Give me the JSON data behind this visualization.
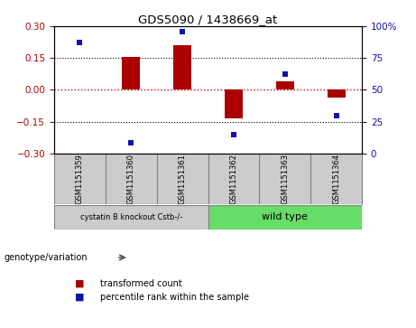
{
  "title": "GDS5090 / 1438669_at",
  "samples": [
    "GSM1151359",
    "GSM1151360",
    "GSM1151361",
    "GSM1151362",
    "GSM1151363",
    "GSM1151364"
  ],
  "transformed_counts": [
    0.002,
    0.155,
    0.21,
    -0.135,
    0.04,
    -0.038
  ],
  "percentile_ranks": [
    87,
    8,
    96,
    15,
    62,
    30
  ],
  "ylim_left": [
    -0.3,
    0.3
  ],
  "ylim_right": [
    0,
    100
  ],
  "yticks_left": [
    -0.3,
    -0.15,
    0,
    0.15,
    0.3
  ],
  "yticks_right": [
    0,
    25,
    50,
    75,
    100
  ],
  "bar_color": "#aa0000",
  "dot_color": "#1111aa",
  "hline_color": "#cc0000",
  "dotted_line_color": "#000000",
  "group1_label": "cystatin B knockout Cstb-/-",
  "group2_label": "wild type",
  "group1_color": "#cccccc",
  "group2_color": "#66dd66",
  "group1_indices": [
    0,
    1,
    2
  ],
  "group2_indices": [
    3,
    4,
    5
  ],
  "legend_bar_label": "transformed count",
  "legend_dot_label": "percentile rank within the sample",
  "genotype_label": "genotype/variation",
  "background_color": "#ffffff"
}
